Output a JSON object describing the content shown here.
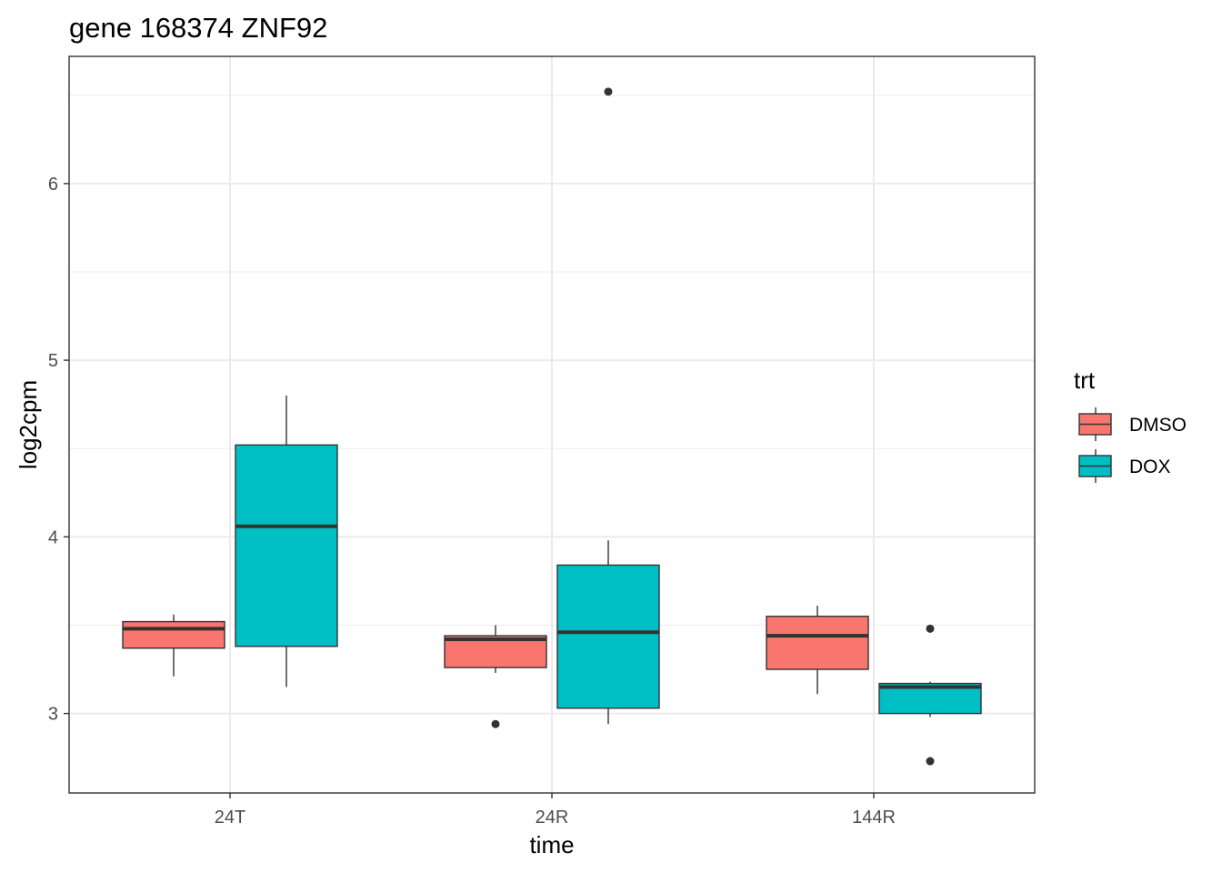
{
  "chart_data": {
    "type": "boxplot",
    "title": "gene 168374 ZNF92",
    "xlabel": "time",
    "ylabel": "log2cpm",
    "categories": [
      "24T",
      "24R",
      "144R"
    ],
    "ylim": [
      2.55,
      6.72
    ],
    "yticks": [
      3,
      4,
      5,
      6
    ],
    "grid": true,
    "legend": {
      "title": "trt",
      "position": "right"
    },
    "series": [
      {
        "name": "DMSO",
        "color": "#F8766D",
        "boxes": [
          {
            "category": "24T",
            "whisker_low": 3.21,
            "q1": 3.37,
            "median": 3.48,
            "q3": 3.52,
            "whisker_high": 3.56,
            "outliers": []
          },
          {
            "category": "24R",
            "whisker_low": 3.23,
            "q1": 3.26,
            "median": 3.42,
            "q3": 3.44,
            "whisker_high": 3.5,
            "outliers": [
              2.94
            ]
          },
          {
            "category": "144R",
            "whisker_low": 3.11,
            "q1": 3.25,
            "median": 3.44,
            "q3": 3.55,
            "whisker_high": 3.61,
            "outliers": []
          }
        ]
      },
      {
        "name": "DOX",
        "color": "#00BFC4",
        "boxes": [
          {
            "category": "24T",
            "whisker_low": 3.15,
            "q1": 3.38,
            "median": 4.06,
            "q3": 4.52,
            "whisker_high": 4.8,
            "outliers": []
          },
          {
            "category": "24R",
            "whisker_low": 2.94,
            "q1": 3.03,
            "median": 3.46,
            "q3": 3.84,
            "whisker_high": 3.98,
            "outliers": [
              6.52
            ]
          },
          {
            "category": "144R",
            "whisker_low": 2.98,
            "q1": 3.0,
            "median": 3.15,
            "q3": 3.17,
            "whisker_high": 3.18,
            "outliers": [
              3.48,
              2.73
            ]
          }
        ]
      }
    ]
  }
}
